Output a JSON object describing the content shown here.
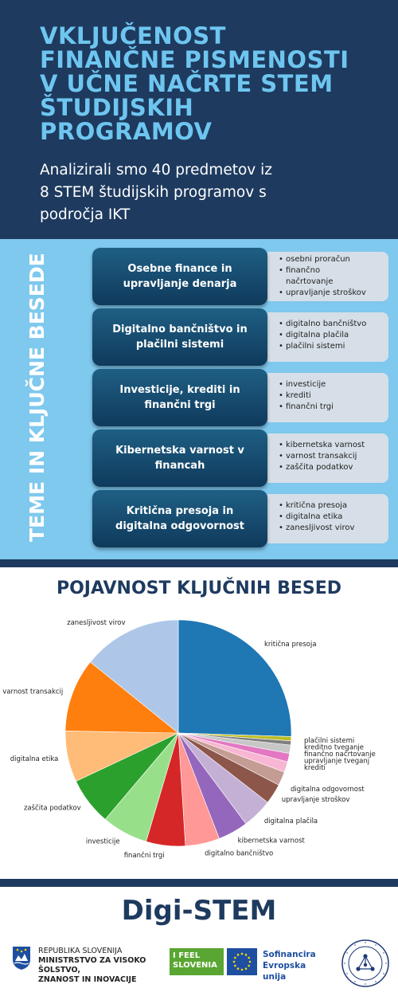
{
  "header": {
    "title_lines": [
      "VKLJUČENOST",
      "FINANČNE PISMENOSTI",
      "V UČNE NAČRTE STEM",
      "ŠTUDIJSKIH",
      "PROGRAMOV"
    ],
    "subtitle_lines": [
      "Analizirali smo 40 predmetov iz",
      "8 STEM študijskih programov s",
      "področja IKT"
    ]
  },
  "themes": {
    "vertical_label": "TEME IN KLJUČNE BESEDE",
    "topics": [
      {
        "label": "Osebne finance in upravljanje denarja",
        "keywords": [
          "osebni proračun",
          "finančno načrtovanje",
          "upravljanje stroškov"
        ]
      },
      {
        "label": "Digitalno bančništvo in plačilni sistemi",
        "keywords": [
          "digitalno bančništvo",
          "digitalna plačila",
          "plačilni sistemi"
        ]
      },
      {
        "label": "Investicije, krediti in finančni trgi",
        "keywords": [
          "investicije",
          "krediti",
          "finančni trgi"
        ]
      },
      {
        "label": "Kibernetska varnost v financah",
        "keywords": [
          "kibernetska varnost",
          "varnost transakcij",
          "zaščita podatkov"
        ]
      },
      {
        "label": "Kritična presoja in digitalna odgovornost",
        "keywords": [
          "kritična presoja",
          "digitalna etika",
          "zanesljivost virov"
        ]
      }
    ]
  },
  "chart_title": "POJAVNOST KLJUČNIH BESED",
  "chart_data": {
    "type": "pie",
    "slices": [
      {
        "label": "kritična presoja",
        "value": 25.5,
        "color": "#1f77b4"
      },
      {
        "label": "plačilni sistemi",
        "value": 0.6,
        "color": "#bcbd22"
      },
      {
        "label": "kreditno tveganje",
        "value": 0.6,
        "color": "#7f7f7f"
      },
      {
        "label": "finančno načrtovanje",
        "value": 1.2,
        "color": "#c7c7c7"
      },
      {
        "label": "upravljanje tveganj",
        "value": 1.2,
        "color": "#e377c2"
      },
      {
        "label": "krediti",
        "value": 1.5,
        "color": "#f7b6d2"
      },
      {
        "label": "digitalna odgovornost",
        "value": 2.0,
        "color": "#c49c94"
      },
      {
        "label": "upravljanje stroškov",
        "value": 2.9,
        "color": "#8c564b"
      },
      {
        "label": "digitalna plačila",
        "value": 4.3,
        "color": "#c5b0d5"
      },
      {
        "label": "kibernetska varnost",
        "value": 4.3,
        "color": "#9467bd"
      },
      {
        "label": "digitalno bančništvo",
        "value": 4.9,
        "color": "#ff9896"
      },
      {
        "label": "finančni trgi",
        "value": 5.6,
        "color": "#d62728"
      },
      {
        "label": "investicije",
        "value": 6.6,
        "color": "#98df8a"
      },
      {
        "label": "zaščita podatkov",
        "value": 6.8,
        "color": "#2ca02c"
      },
      {
        "label": "digitalna etika",
        "value": 7.3,
        "color": "#ffbb78"
      },
      {
        "label": "varnost transakcij",
        "value": 10.5,
        "color": "#ff7f0e"
      },
      {
        "label": "zanesljivost virov",
        "value": 14.2,
        "color": "#aec7e8"
      }
    ]
  },
  "footer": {
    "brand": "Digi-STEM",
    "gov_lines": [
      "REPUBLIKA SLOVENIJA",
      "MINISTRSTVO ZA VISOKO ŠOLSTVO,",
      "ZNANOST IN INOVACIJE"
    ],
    "ifeel_lines": [
      "I FEEL",
      "SLOVENIA"
    ],
    "eu_lines": [
      "Sofinancira",
      "Evropska unija"
    ]
  }
}
